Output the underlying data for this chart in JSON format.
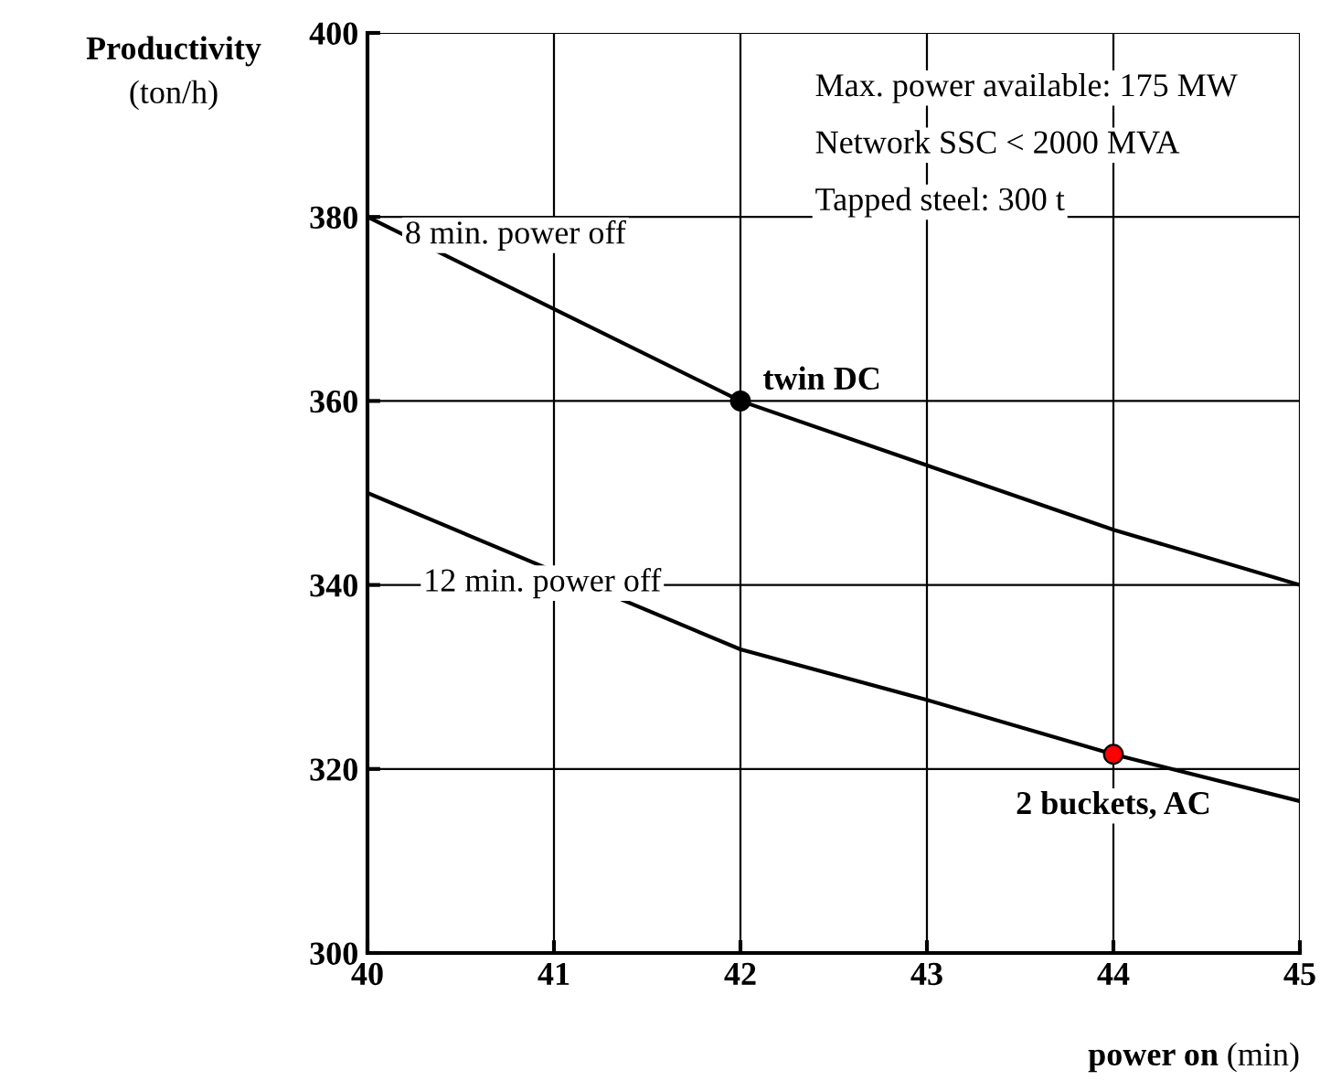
{
  "chart_data": {
    "type": "line",
    "ylabel": "Productivity (ton/h)",
    "xlabel": "power on (min)",
    "x": [
      40,
      41,
      42,
      43,
      44,
      45
    ],
    "series": [
      {
        "name": "8 min. power off",
        "color": "#000000",
        "marker": "none",
        "values": [
          380,
          370,
          360,
          353,
          346,
          340
        ]
      },
      {
        "name": "12 min. power off",
        "color": "#000000",
        "marker": "none",
        "x": [
          40,
          42,
          43,
          44,
          45
        ],
        "values": [
          350,
          333,
          327.5,
          321.6,
          316.5
        ]
      },
      {
        "name": "twin DC",
        "type": "scatter",
        "color": "#000000",
        "marker": "circle",
        "x": [
          42
        ],
        "values": [
          360
        ]
      },
      {
        "name": "2 buckets, AC",
        "type": "scatter",
        "color": "#ff0000",
        "marker": "circle",
        "x": [
          44
        ],
        "values": [
          321.6
        ]
      }
    ],
    "annotations": [
      "Max. power available: 175 MW",
      "Network SSC < 2000 MVA",
      "Tapped steel: 300 t"
    ],
    "xlim": [
      40,
      45
    ],
    "xticks": [
      40,
      41,
      42,
      43,
      44,
      45
    ],
    "ylim": [
      300,
      400
    ],
    "yticks": [
      300,
      320,
      340,
      360,
      380,
      400
    ],
    "grid": true,
    "line_style": "solid",
    "legend": false
  }
}
